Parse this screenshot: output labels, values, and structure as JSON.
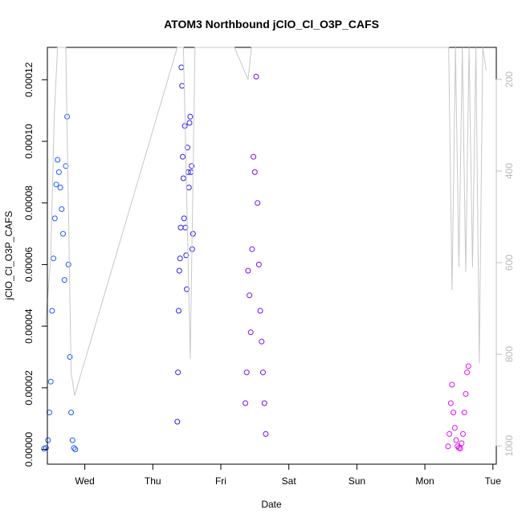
{
  "chart_data": {
    "type": "scatter",
    "title": "ATOM3 Northbound jClO_Cl_O3P_CAFS",
    "xlabel": "Date",
    "ylabel": "jClO_Cl_O3P_CAFS",
    "x_unit": "days",
    "xlim": [
      -0.55,
      6.05
    ],
    "ylim": [
      -4.8e-06,
      0.0001305
    ],
    "x_ticks": [
      {
        "value": 0,
        "label": "Wed"
      },
      {
        "value": 1,
        "label": "Thu"
      },
      {
        "value": 2,
        "label": "Fri"
      },
      {
        "value": 3,
        "label": "Sat"
      },
      {
        "value": 4,
        "label": "Sun"
      },
      {
        "value": 5,
        "label": "Mon"
      },
      {
        "value": 6,
        "label": "Tue"
      }
    ],
    "y_ticks": [
      {
        "value": 0.0,
        "label": "0.00000"
      },
      {
        "value": 2e-05,
        "label": "0.00002"
      },
      {
        "value": 4e-05,
        "label": "0.00004"
      },
      {
        "value": 6e-05,
        "label": "0.00006"
      },
      {
        "value": 8e-05,
        "label": "0.00008"
      },
      {
        "value": 0.0001,
        "label": "0.00010"
      },
      {
        "value": 0.00012,
        "label": "0.00012"
      }
    ],
    "y2_ticks": [
      {
        "value": 200,
        "label": "200"
      },
      {
        "value": 400,
        "label": "400"
      },
      {
        "value": 600,
        "label": "600"
      },
      {
        "value": 800,
        "label": "800"
      },
      {
        "value": 1000,
        "label": "1000"
      }
    ],
    "y2lim": [
      1040,
      130
    ],
    "grid": false,
    "series": [
      {
        "color": "#1e5cf5",
        "marker": "open-circle",
        "points": [
          [
            -0.6,
            2e-07
          ],
          [
            -0.57,
            5e-07
          ],
          [
            -0.54,
            3e-06
          ],
          [
            -0.52,
            1.2e-05
          ],
          [
            -0.5,
            2.2e-05
          ],
          [
            -0.48,
            4.5e-05
          ],
          [
            -0.46,
            6.2e-05
          ],
          [
            -0.44,
            7.5e-05
          ],
          [
            -0.42,
            8.6e-05
          ],
          [
            -0.4,
            9.4e-05
          ],
          [
            -0.38,
            9e-05
          ],
          [
            -0.36,
            8.5e-05
          ],
          [
            -0.34,
            7.8e-05
          ],
          [
            -0.32,
            7e-05
          ],
          [
            -0.3,
            5.5e-05
          ],
          [
            -0.28,
            9.2e-05
          ],
          [
            -0.26,
            0.000108
          ],
          [
            -0.24,
            6e-05
          ],
          [
            -0.22,
            3e-05
          ],
          [
            -0.2,
            1.2e-05
          ],
          [
            -0.18,
            3e-06
          ],
          [
            -0.16,
            5e-07
          ],
          [
            -0.14,
            0.0
          ]
        ]
      },
      {
        "color": "#2a22ee",
        "marker": "open-circle",
        "points": [
          [
            1.36,
            9e-06
          ],
          [
            1.37,
            2.5e-05
          ],
          [
            1.38,
            4.5e-05
          ],
          [
            1.39,
            5.8e-05
          ],
          [
            1.4,
            6.2e-05
          ],
          [
            1.41,
            7.2e-05
          ],
          [
            1.42,
            0.000124
          ],
          [
            1.43,
            0.000118
          ],
          [
            1.44,
            9.5e-05
          ],
          [
            1.45,
            8.8e-05
          ],
          [
            1.46,
            7.5e-05
          ],
          [
            1.47,
            0.000105
          ],
          [
            1.48,
            7.2e-05
          ],
          [
            1.49,
            6.3e-05
          ],
          [
            1.5,
            5.2e-05
          ],
          [
            1.51,
            9.8e-05
          ],
          [
            1.52,
            9e-05
          ],
          [
            1.53,
            8.5e-05
          ],
          [
            1.54,
            0.000106
          ],
          [
            1.55,
            0.000108
          ],
          [
            1.56,
            9e-05
          ],
          [
            1.57,
            9.2e-05
          ],
          [
            1.58,
            6.5e-05
          ],
          [
            1.59,
            7e-05
          ]
        ]
      },
      {
        "color": "#7a0ef0",
        "marker": "open-circle",
        "points": [
          [
            2.36,
            1.5e-05
          ],
          [
            2.38,
            2.5e-05
          ],
          [
            2.4,
            5.8e-05
          ],
          [
            2.42,
            5e-05
          ],
          [
            2.44,
            3.8e-05
          ],
          [
            2.46,
            6.5e-05
          ],
          [
            2.48,
            9.5e-05
          ],
          [
            2.5,
            9e-05
          ],
          [
            2.52,
            0.000121
          ],
          [
            2.54,
            8e-05
          ],
          [
            2.56,
            6e-05
          ],
          [
            2.58,
            4.5e-05
          ],
          [
            2.6,
            3.5e-05
          ],
          [
            2.62,
            2.5e-05
          ],
          [
            2.64,
            1.5e-05
          ],
          [
            2.66,
            5e-06
          ]
        ]
      },
      {
        "color": "#e010f5",
        "marker": "open-circle",
        "points": [
          [
            5.34,
            1e-06
          ],
          [
            5.36,
            5e-06
          ],
          [
            5.38,
            1.5e-05
          ],
          [
            5.4,
            2.1e-05
          ],
          [
            5.42,
            1.2e-05
          ],
          [
            5.44,
            7e-06
          ],
          [
            5.46,
            3e-06
          ],
          [
            5.48,
            1e-06
          ],
          [
            5.5,
            5e-07
          ],
          [
            5.52,
            3e-07
          ],
          [
            5.54,
            2e-06
          ],
          [
            5.56,
            5e-06
          ],
          [
            5.58,
            1.2e-05
          ],
          [
            5.6,
            1.8e-05
          ],
          [
            5.62,
            2.5e-05
          ],
          [
            5.64,
            2.7e-05
          ]
        ]
      },
      {
        "color": "#c8c8c8",
        "marker": "line",
        "axis": "y2",
        "points": [
          [
            -0.58,
            740
          ],
          [
            -0.5,
            590
          ],
          [
            -0.45,
            280
          ],
          [
            -0.4,
            130
          ],
          [
            -0.35,
            130
          ],
          [
            -0.28,
            130
          ],
          [
            -0.2,
            840
          ],
          [
            -0.15,
            890
          ],
          [
            1.36,
            130
          ],
          [
            1.45,
            130
          ],
          [
            1.55,
            810
          ],
          [
            1.62,
            130
          ],
          [
            1.8,
            130
          ],
          [
            2.2,
            130
          ],
          [
            2.4,
            200
          ],
          [
            2.45,
            130
          ],
          [
            2.6,
            130
          ],
          [
            2.7,
            130
          ],
          [
            5.35,
            130
          ],
          [
            5.4,
            660
          ],
          [
            5.45,
            130
          ],
          [
            5.5,
            610
          ],
          [
            5.55,
            130
          ],
          [
            5.6,
            620
          ],
          [
            5.65,
            130
          ],
          [
            5.7,
            610
          ],
          [
            5.75,
            130
          ],
          [
            5.8,
            820
          ],
          [
            5.85,
            130
          ],
          [
            5.9,
            180
          ]
        ]
      }
    ]
  }
}
